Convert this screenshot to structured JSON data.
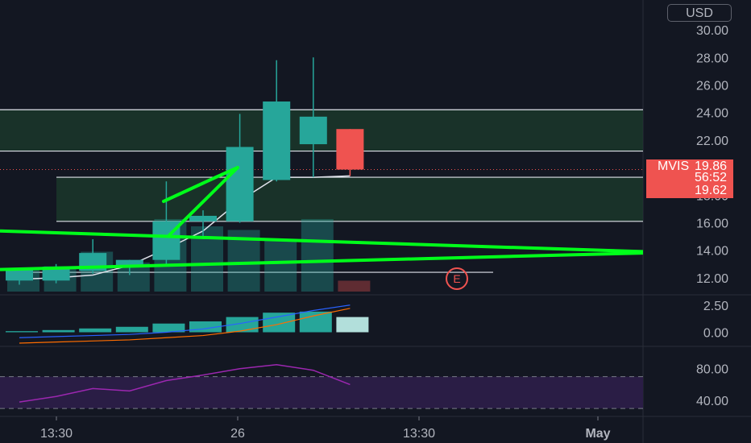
{
  "symbol": "MVIS",
  "currency": "USD",
  "last_price": "19.86",
  "countdown": "56:52",
  "prev_price": "19.62",
  "event_marker": "E",
  "colors": {
    "background": "#131722",
    "up": "#26a69a",
    "down": "#ef5350",
    "zone_fill": "#1b3a2c",
    "trendline": "#00ff1a",
    "grid_text": "#b2b5be",
    "rsi_line": "#9c27b0",
    "rsi_band": "#2a1d45"
  },
  "chart_data": [
    {
      "type": "candlestick",
      "title": "",
      "ylim": [
        11,
        31
      ],
      "y_ticks": [
        "12.00",
        "14.00",
        "16.00",
        "18.00",
        "20.00",
        "22.00",
        "24.00",
        "26.00",
        "28.00",
        "30.00"
      ],
      "x_ticks": [
        "13:30",
        "26",
        "13:30",
        "May"
      ],
      "candles": [
        {
          "o": 11.8,
          "h": 12.5,
          "l": 11.5,
          "c": 12.6
        },
        {
          "o": 11.8,
          "h": 13.0,
          "l": 11.6,
          "c": 12.8
        },
        {
          "o": 12.5,
          "h": 14.8,
          "l": 12.3,
          "c": 13.8
        },
        {
          "o": 12.8,
          "h": 13.3,
          "l": 12.2,
          "c": 13.3
        },
        {
          "o": 13.3,
          "h": 19.0,
          "l": 13.0,
          "c": 16.1
        },
        {
          "o": 16.1,
          "h": 16.9,
          "l": 14.9,
          "c": 16.5
        },
        {
          "o": 16.1,
          "h": 23.9,
          "l": 16.0,
          "c": 21.5
        },
        {
          "o": 19.1,
          "h": 27.8,
          "l": 19.0,
          "c": 24.8
        },
        {
          "o": 21.7,
          "h": 28.0,
          "l": 19.3,
          "c": 23.7
        },
        {
          "o": 22.8,
          "h": 22.8,
          "l": 19.4,
          "c": 19.86
        }
      ],
      "horizontal_levels": [
        24.2,
        21.2,
        19.3,
        16.1,
        12.4
      ],
      "zones": [
        {
          "from": 21.2,
          "to": 24.2
        },
        {
          "from": 16.1,
          "to": 19.3
        }
      ],
      "trendlines": [
        {
          "from": [
            0,
            15.4
          ],
          "to": [
            13,
            13.9
          ]
        },
        {
          "from": [
            0,
            12.6
          ],
          "to": [
            13,
            13.8
          ]
        }
      ],
      "moving_average": [
        11.9,
        12.0,
        12.2,
        12.9,
        14.1,
        15.4,
        17.6,
        19.3,
        19.3,
        19.4
      ]
    },
    {
      "type": "histogram",
      "title": "",
      "ylim": [
        -1,
        3
      ],
      "y_ticks": [
        "0.00",
        "2.50"
      ],
      "values": [
        0.1,
        0.2,
        0.35,
        0.5,
        0.8,
        1.0,
        1.4,
        1.8,
        1.9,
        1.4
      ],
      "signal": [
        -1.0,
        -0.9,
        -0.8,
        -0.7,
        -0.5,
        -0.3,
        0.1,
        0.7,
        1.5,
        2.2
      ],
      "macd": [
        -0.5,
        -0.4,
        -0.3,
        -0.2,
        0.0,
        0.3,
        0.8,
        1.4,
        2.0,
        2.5
      ]
    },
    {
      "type": "line",
      "title": "",
      "ylim": [
        25,
        100
      ],
      "y_ticks": [
        "40.00",
        "80.00"
      ],
      "bands": [
        30,
        70
      ],
      "values": [
        38,
        45,
        55,
        52,
        65,
        72,
        80,
        85,
        78,
        60
      ]
    }
  ]
}
